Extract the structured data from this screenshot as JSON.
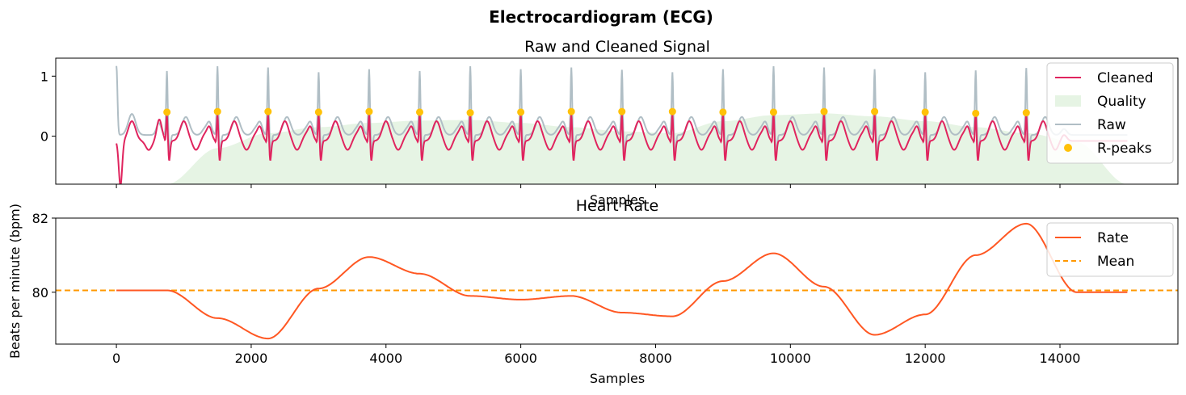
{
  "suptitle": "Electrocardiogram (ECG)",
  "colors": {
    "cleaned": "#E0245E",
    "raw": "#B0BEC5",
    "quality": "#E6F4E4",
    "rpeaks": "#FFC107",
    "rate": "#FF5722",
    "mean": "#FF9800"
  },
  "chart_data": [
    {
      "type": "line",
      "title": "Raw and Cleaned Signal",
      "xlabel": "Samples",
      "ylabel": "",
      "xlim": [
        -900,
        15750
      ],
      "ylim": [
        -0.8,
        1.3
      ],
      "xticks": [
        0,
        2000,
        4000,
        6000,
        8000,
        10000,
        12000,
        14000
      ],
      "xtick_labels": [
        "",
        "",
        "",
        "",
        "",
        "",
        "",
        ""
      ],
      "yticks": [
        0,
        1
      ],
      "ytick_labels": [
        "0",
        "1"
      ],
      "legend_position": "top-right",
      "legend": [
        "Cleaned",
        "Quality",
        "Raw",
        "R-peaks"
      ],
      "series": [
        {
          "name": "Cleaned",
          "kind": "line"
        },
        {
          "name": "Quality",
          "kind": "area",
          "x": [
            750,
            1500,
            2250,
            3000,
            3750,
            4500,
            5250,
            6000,
            6750,
            7500,
            8250,
            9000,
            9750,
            10500,
            11250,
            12000,
            12750,
            13500,
            14250,
            15000
          ],
          "values": [
            -0.8,
            -0.2,
            0.05,
            0.15,
            0.22,
            0.26,
            0.27,
            0.22,
            0.15,
            0.08,
            0.05,
            0.25,
            0.35,
            0.38,
            0.33,
            0.25,
            0.15,
            0.05,
            -0.1,
            -0.8
          ]
        },
        {
          "name": "Raw",
          "kind": "line"
        },
        {
          "name": "R-peaks",
          "kind": "scatter",
          "x": [
            750,
            1500,
            2250,
            3000,
            3750,
            4500,
            5250,
            6000,
            6750,
            7500,
            8250,
            9000,
            9750,
            10500,
            11250,
            12000,
            12750,
            13500
          ],
          "values": [
            0.4,
            0.41,
            0.41,
            0.4,
            0.41,
            0.4,
            0.39,
            0.4,
            0.41,
            0.41,
            0.41,
            0.4,
            0.4,
            0.41,
            0.41,
            0.4,
            0.38,
            0.39
          ]
        }
      ],
      "signal": {
        "beats_x": [
          750,
          1500,
          2250,
          3000,
          3750,
          4500,
          5250,
          6000,
          6750,
          7500,
          8250,
          9000,
          9750,
          10500,
          11250,
          12000,
          12750,
          13500
        ],
        "raw_peaks": [
          1.12,
          1.2,
          1.18,
          1.1,
          1.15,
          1.12,
          1.2,
          1.15,
          1.18,
          1.14,
          1.1,
          1.15,
          1.2,
          1.18,
          1.15,
          1.1,
          1.13,
          1.17
        ]
      }
    },
    {
      "type": "line",
      "title": "Heart Rate",
      "xlabel": "Samples",
      "ylabel": "Beats per minute (bpm)",
      "xlim": [
        -900,
        15750
      ],
      "ylim": [
        78.6,
        82.0
      ],
      "xticks": [
        0,
        2000,
        4000,
        6000,
        8000,
        10000,
        12000,
        14000
      ],
      "xtick_labels": [
        "0",
        "2000",
        "4000",
        "6000",
        "8000",
        "10000",
        "12000",
        "14000"
      ],
      "yticks": [
        80,
        82
      ],
      "ytick_labels": [
        "80",
        "82"
      ],
      "legend_position": "top-right",
      "legend": [
        "Rate",
        "Mean"
      ],
      "series": [
        {
          "name": "Rate",
          "kind": "line",
          "x": [
            0,
            750,
            1500,
            2250,
            3000,
            3750,
            4500,
            5250,
            6000,
            6750,
            7500,
            8250,
            9000,
            9750,
            10500,
            11250,
            12000,
            12750,
            13500,
            14250,
            15000
          ],
          "values": [
            80.05,
            80.05,
            79.3,
            78.75,
            80.1,
            80.95,
            80.5,
            79.9,
            79.8,
            79.9,
            79.45,
            79.35,
            80.3,
            81.05,
            80.15,
            78.85,
            79.4,
            81.0,
            81.85,
            80.0,
            80.0
          ]
        },
        {
          "name": "Mean",
          "kind": "hline",
          "value": 80.05
        }
      ]
    }
  ]
}
